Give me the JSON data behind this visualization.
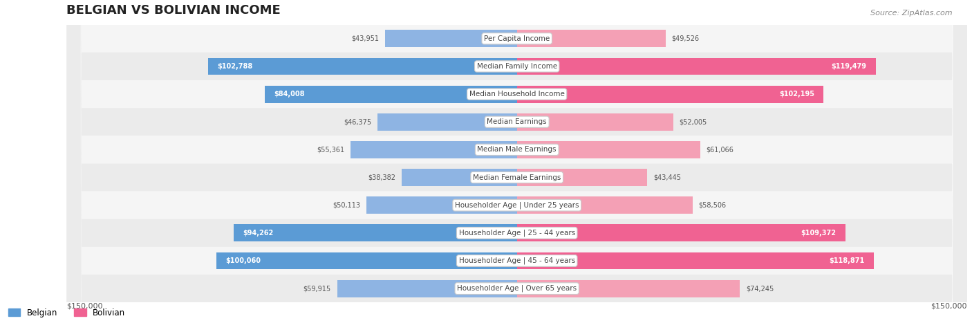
{
  "title": "BELGIAN VS BOLIVIAN INCOME",
  "source": "Source: ZipAtlas.com",
  "categories": [
    "Per Capita Income",
    "Median Family Income",
    "Median Household Income",
    "Median Earnings",
    "Median Male Earnings",
    "Median Female Earnings",
    "Householder Age | Under 25 years",
    "Householder Age | 25 - 44 years",
    "Householder Age | 45 - 64 years",
    "Householder Age | Over 65 years"
  ],
  "belgian_values": [
    43951,
    102788,
    84008,
    46375,
    55361,
    38382,
    50113,
    94262,
    100060,
    59915
  ],
  "bolivian_values": [
    49526,
    119479,
    102195,
    52005,
    61066,
    43445,
    58506,
    109372,
    118871,
    74245
  ],
  "max_value": 150000,
  "belgian_color_bar": "#8eb4e3",
  "bolivian_color_bar": "#f4a0b5",
  "belgian_color_highlight": "#5b9bd5",
  "bolivian_color_highlight": "#f06292",
  "label_bg": "#f0f0f0",
  "row_bg": "#f5f5f5",
  "row_bg_alt": "#ebebeb",
  "highlight_threshold": 80000,
  "belgian_label": "Belgian",
  "bolivian_label": "Bolivian",
  "bg_color": "#ffffff",
  "axis_label_left": "$150,000",
  "axis_label_right": "$150,000"
}
